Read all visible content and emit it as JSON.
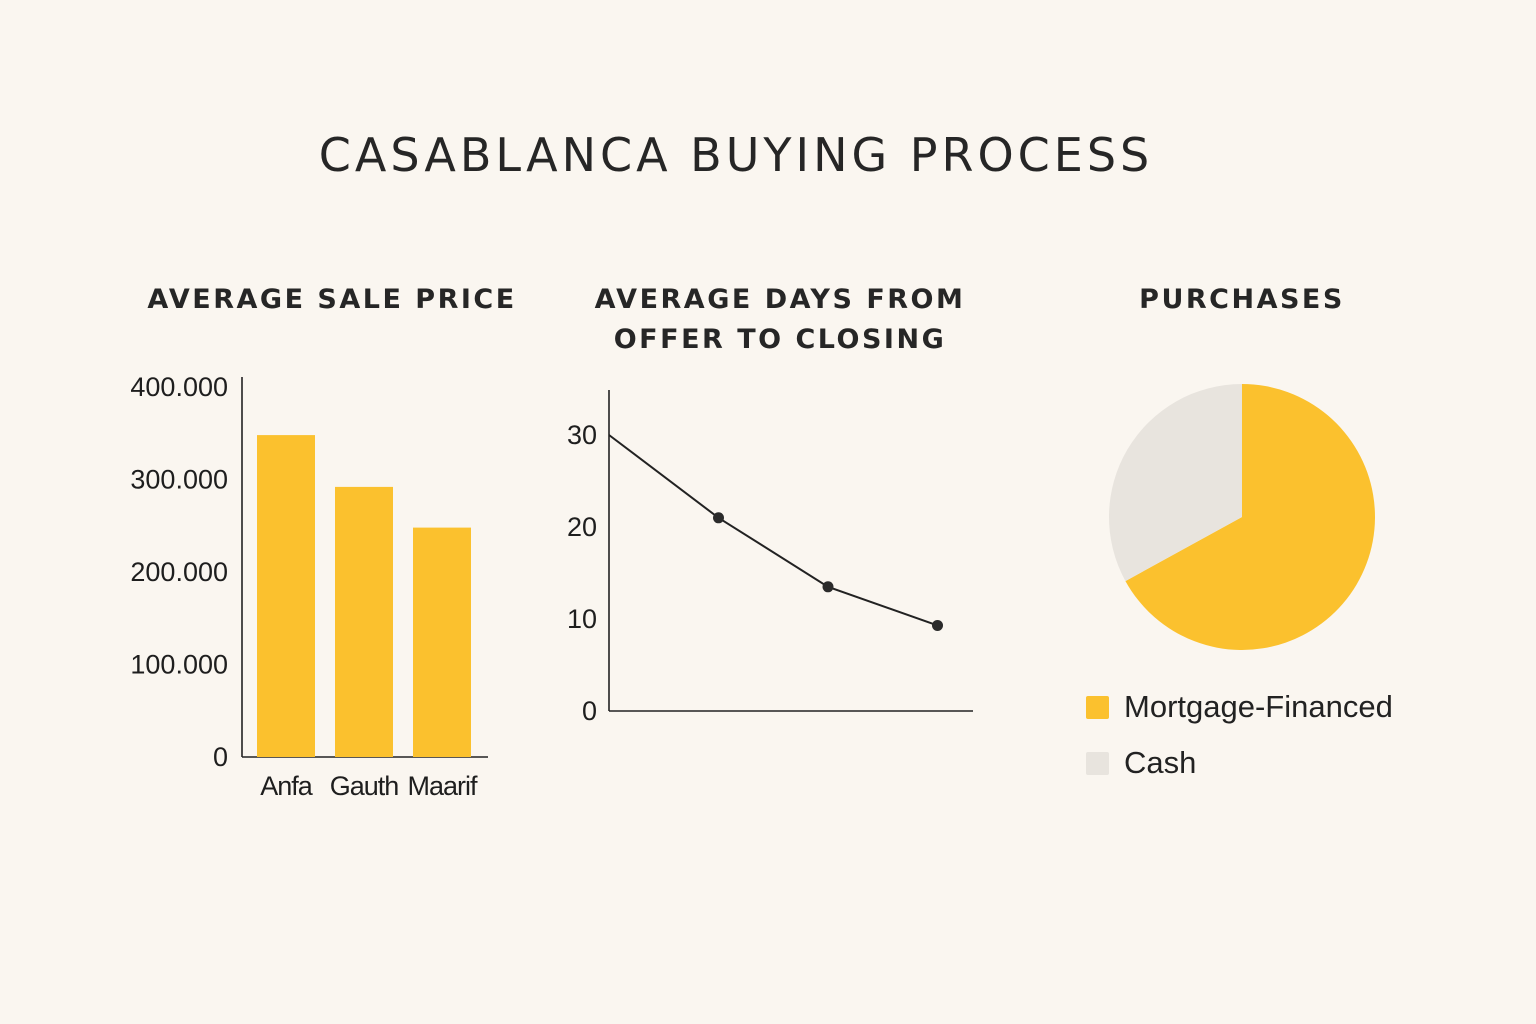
{
  "title": "CASABLANCA BUYING PROCESS",
  "colors": {
    "background": "#faf6f0",
    "accent": "#fbc12e",
    "cash": "#e8e4de",
    "line": "#222222"
  },
  "chart_data": [
    {
      "type": "bar",
      "title": "AVERAGE SALE PRICE",
      "categories": [
        "Anfa",
        "Gauth",
        "Maarif"
      ],
      "values": [
        348000,
        292000,
        248000
      ],
      "ylim": [
        0,
        400000
      ],
      "yticks": [
        0,
        100000,
        200000,
        300000,
        400000
      ],
      "ytick_labels": [
        "0",
        "100.000",
        "200.000",
        "300.000",
        "400.000"
      ],
      "xlabel": "",
      "ylabel": "",
      "color": "#fbc12e",
      "grid": false
    },
    {
      "type": "line",
      "title": "AVERAGE DAYS FROM OFFER TO CLOSING",
      "title_lines": [
        "AVERAGE DAYS FROM",
        "OFFER TO CLOSING"
      ],
      "x": [
        0,
        1,
        2,
        3
      ],
      "values": [
        30,
        21,
        13.5,
        9.3
      ],
      "xlim": [
        0,
        3.3
      ],
      "ylim": [
        0,
        35
      ],
      "yticks": [
        0,
        10,
        20,
        30
      ],
      "ytick_labels": [
        "0",
        "10",
        "20",
        "30"
      ],
      "xlabel": "",
      "ylabel": "",
      "color": "#222222",
      "grid": false
    },
    {
      "type": "pie",
      "title": "PURCHASES",
      "labels": [
        "Mortgage-Financed",
        "Cash"
      ],
      "values": [
        67,
        33
      ],
      "colors": [
        "#fbc12e",
        "#e8e4de"
      ],
      "legend": "bottom"
    }
  ]
}
